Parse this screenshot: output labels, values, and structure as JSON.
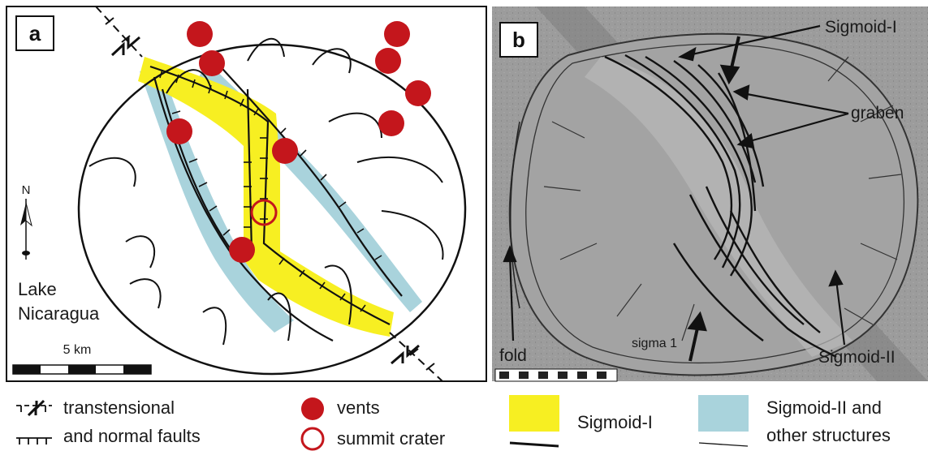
{
  "panel_a": {
    "letter": "a",
    "lake_line1": "Lake",
    "lake_line2": "Nicaragua",
    "north": "N",
    "scale": "5 km"
  },
  "panel_b": {
    "letter": "b",
    "labels": {
      "sigmoid1": "Sigmoid-I",
      "graben": "graben",
      "fold": "fold",
      "sigma1": "sigma 1",
      "sigmoid2": "Sigmoid-II"
    }
  },
  "legend": {
    "faults_line1": "transtensional",
    "faults_line2": "and normal faults",
    "vents": "vents",
    "crater": "summit crater",
    "sigmoid1": "Sigmoid-I",
    "sigmoid2_line1": "Sigmoid-II and",
    "sigmoid2_line2": "other structures"
  },
  "colors": {
    "sigmoid1": "#f7ef22",
    "sigmoid2": "#a9d3dc",
    "vent": "#c4161c",
    "photo_bg": "#9a9a9a"
  }
}
